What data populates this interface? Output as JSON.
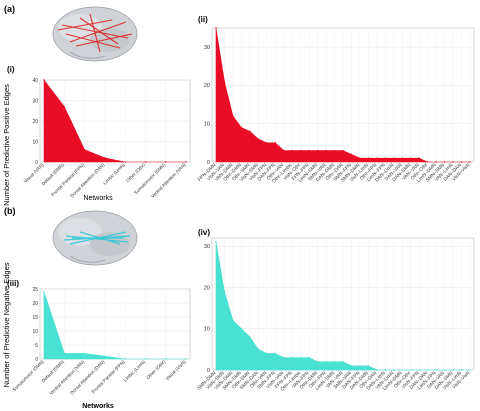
{
  "panel_labels": [
    "(a)",
    "(b)",
    "(i)",
    "(ii)",
    "(iii)",
    "(iv)"
  ],
  "shared_ylabel_top": "Number of Predictive Positive Edges",
  "shared_ylabel_bottom": "Number of Predictive Negative Edges",
  "xlabel_small": "Networks",
  "colors": {
    "positive": "#e8001c",
    "negative": "#40e0d0",
    "brain_edge_pos": "#e02020",
    "brain_edge_neg": "#30c8d8"
  },
  "chart_data": [
    {
      "id": "i",
      "type": "area",
      "color": "#e8001c",
      "categories": [
        "Visual (VAN)",
        "Default (DMN)",
        "Frontal Parietal (FPN)",
        "Dorsal Attention (DAN)",
        "Limbic (LimN)",
        "Other (Othr)",
        "Somatomotor (SMN)",
        "Ventral Attention (VAN)"
      ],
      "values": [
        40,
        27,
        6,
        2,
        0,
        0,
        0,
        0
      ],
      "ylim": [
        0,
        40
      ],
      "yticks": [
        0,
        10,
        20,
        30,
        40
      ],
      "xlabel": "Networks",
      "grid": true
    },
    {
      "id": "ii",
      "type": "area",
      "color": "#e8001c",
      "categories": [
        "FPN–DMN",
        "VisN–VAN",
        "VAN–DMN",
        "Othr–DMN",
        "Othr–SMN",
        "VisN–SMN",
        "VisN–FPN",
        "DAN–FPN",
        "Othr–VAN",
        "Othr–Limbic",
        "VisN–Othr",
        "FPN–FPN",
        "LimN–SMN",
        "SMN–VAN",
        "DAN–DMN",
        "Othr–DAN",
        "SMN–FPN",
        "SMN–DMN",
        "VisN–LimN",
        "Othr–FPN",
        "LimN–FPN",
        "DAN–LimN",
        "DAN–VAN",
        "DAN–SMN",
        "VAN–VAN",
        "Othr–Othr",
        "LimN–DMN",
        "SMN–SMN",
        "VAN–LimN",
        "DAN–DAN",
        "VisN–VisN"
      ],
      "values": [
        35,
        21,
        12,
        9,
        8,
        6,
        5,
        5,
        3,
        3,
        3,
        3,
        3,
        3,
        3,
        3,
        2,
        1,
        1,
        1,
        1,
        1,
        1,
        1,
        1,
        0,
        0,
        0,
        0,
        0,
        0
      ],
      "ylim": [
        0,
        35
      ],
      "yticks": [
        0,
        10,
        20,
        30
      ],
      "grid": true
    },
    {
      "id": "iii",
      "type": "area",
      "color": "#40e0d0",
      "categories": [
        "Somatomotor (SMN)",
        "Default (DMN)",
        "Ventral Attention (VAN)",
        "Dorsal Attention (DAN)",
        "Frontal Parietal (FPN)",
        "Limbic (LimN)",
        "Other (Othr)",
        "Visual (VisN)"
      ],
      "values": [
        24,
        2,
        2,
        1,
        0,
        0,
        0,
        0
      ],
      "ylim": [
        0,
        25
      ],
      "yticks": [
        0,
        5,
        10,
        15,
        20,
        25
      ],
      "xlabel": "Networks",
      "grid": true
    },
    {
      "id": "iv",
      "type": "area",
      "color": "#40e0d0",
      "categories": [
        "SMN–DMN",
        "VisN–SMN",
        "VisN–DMN",
        "SMN–SMN",
        "Othr–SMN",
        "SMN–DAN",
        "Othr–VAN",
        "SMN–FPN",
        "VisN–VAN",
        "FPN–FPN",
        "Othr–Limbic",
        "VAN–FPN",
        "Othr–DMN",
        "Othr–FPN",
        "LimN–SMN",
        "VAN–VAN",
        "SMN–VAN",
        "DAN–FPN",
        "DAN–DMN",
        "Othr–DAN",
        "DAN–LimN",
        "VAN–LimN",
        "LimN–DMN",
        "Othr–Othr",
        "VisN–FPN",
        "DAN–DAN",
        "LimN–FPN",
        "DAN–VAN",
        "DAN–SMN",
        "VisN–LimN",
        "VisN–VisN"
      ],
      "values": [
        31,
        19,
        12,
        10,
        8,
        5,
        4,
        4,
        3,
        3,
        3,
        3,
        2,
        2,
        2,
        2,
        1,
        1,
        1,
        0,
        0,
        0,
        0,
        0,
        0,
        0,
        0,
        0,
        0,
        0,
        0
      ],
      "ylim": [
        0,
        32
      ],
      "yticks": [
        0,
        10,
        20,
        30
      ],
      "grid": true
    }
  ]
}
